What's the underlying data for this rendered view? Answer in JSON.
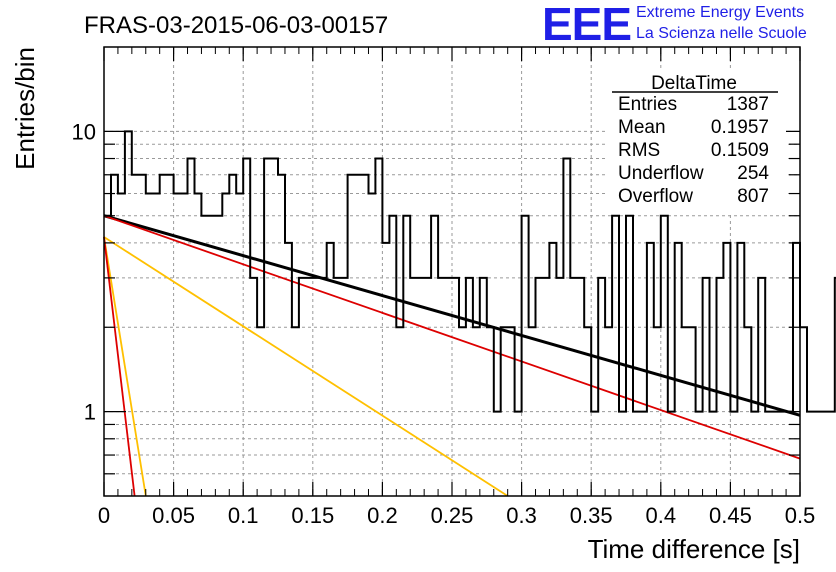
{
  "logo": {
    "mark": "EEE",
    "line1": "Extreme Energy Events",
    "line2": "La Scienza nelle Scuole",
    "color": "#1f1fe6"
  },
  "stats_box": {
    "name": "DeltaTime",
    "rows": [
      {
        "label": "Entries",
        "value": "1387"
      },
      {
        "label": "Mean",
        "value": "0.1957"
      },
      {
        "label": "RMS",
        "value": "0.1509"
      },
      {
        "label": "Underflow",
        "value": "254"
      },
      {
        "label": "Overflow",
        "value": "807"
      }
    ]
  },
  "chart_data": {
    "type": "line",
    "title": "FRAS-03-2015-06-03-00157",
    "xlabel": "Time difference [s]",
    "ylabel": "Entries/bin",
    "xlim": [
      0,
      0.5
    ],
    "ylim": [
      0.5,
      20
    ],
    "yscale": "log",
    "grid": true,
    "xticks": [
      0,
      0.05,
      0.1,
      0.15,
      0.2,
      0.25,
      0.3,
      0.35,
      0.4,
      0.45,
      0.5
    ],
    "xtick_labels": [
      "0",
      "0.05",
      "0.1",
      "0.15",
      "0.2",
      "0.25",
      "0.3",
      "0.35",
      "0.4",
      "0.45",
      "0.5"
    ],
    "yticks": [
      1,
      10
    ],
    "ytick_labels": [
      "1",
      "10"
    ],
    "histogram": {
      "bin_width": 0.005,
      "color": "#000000",
      "values": [
        5,
        7,
        6,
        10,
        7,
        7,
        6,
        6,
        7,
        7,
        6,
        6,
        8,
        6,
        5,
        5,
        5,
        6,
        7,
        6,
        8,
        3,
        2,
        8,
        8,
        7,
        4,
        2,
        3,
        3,
        3,
        3,
        4,
        3,
        3,
        7,
        7,
        7,
        6,
        8,
        4,
        5,
        2,
        5,
        3,
        3,
        3,
        5,
        3,
        3,
        3,
        2,
        3,
        2,
        3,
        2,
        1,
        2,
        2,
        1,
        5,
        2,
        3,
        3,
        4,
        3,
        8,
        3,
        3,
        2,
        1,
        3,
        2,
        5,
        1,
        5,
        1,
        1,
        4,
        2,
        5,
        1,
        4,
        2,
        2,
        1,
        3,
        1,
        3,
        4,
        1,
        4,
        2,
        1,
        3,
        1,
        1,
        1,
        1,
        4,
        2,
        1,
        1,
        1,
        1,
        3,
        3,
        1,
        2,
        1,
        3,
        2,
        1,
        4,
        2,
        1,
        2,
        1,
        2,
        3,
        3,
        1,
        3,
        3,
        1,
        3,
        2,
        2,
        1,
        2,
        2,
        2,
        3,
        2,
        1,
        1,
        2,
        3,
        2,
        1,
        3,
        4,
        2,
        1,
        2,
        2,
        2,
        2,
        4,
        2,
        4,
        2,
        3,
        1,
        2,
        2,
        2,
        3,
        2,
        2,
        3,
        2,
        2,
        3,
        5,
        2,
        1,
        1,
        2,
        2,
        4,
        4,
        2,
        2,
        4,
        2,
        3,
        2,
        3,
        2,
        2,
        3,
        3,
        3,
        5,
        2,
        2,
        3,
        2,
        3,
        2,
        2,
        1,
        2,
        4,
        3,
        4,
        4,
        1,
        3,
        3,
        4,
        3,
        2,
        3,
        3,
        4,
        2,
        2,
        2,
        2,
        1,
        3,
        2,
        2,
        2,
        1,
        2,
        2,
        2,
        2,
        2,
        2,
        3,
        2,
        2,
        4,
        2,
        3,
        2,
        2,
        1,
        2,
        3,
        2,
        1,
        3,
        2,
        2,
        3,
        3,
        2,
        2,
        2,
        3,
        2,
        1,
        2,
        2,
        1,
        2,
        2,
        2,
        1,
        1,
        2,
        2,
        2,
        1,
        1,
        1,
        1,
        2,
        1,
        2,
        2,
        2,
        1,
        1,
        1,
        1,
        2,
        2,
        2,
        1,
        2,
        2,
        2,
        1,
        2,
        2,
        2,
        1,
        1,
        2,
        2,
        2,
        1,
        2,
        2,
        1,
        2,
        2,
        2,
        1,
        1,
        1,
        2,
        2,
        2,
        1,
        2,
        2,
        1,
        1,
        1,
        1,
        1,
        2,
        2,
        1,
        2,
        2,
        1,
        1,
        1,
        1,
        2,
        2,
        2,
        2,
        2,
        1,
        1,
        1,
        1,
        1,
        1,
        1,
        2,
        2,
        2,
        1,
        1,
        2,
        2,
        1,
        2,
        2,
        1,
        1,
        1,
        3,
        1,
        1,
        2,
        2,
        1,
        1,
        2,
        1,
        1,
        1,
        1,
        2,
        1,
        1,
        2,
        3,
        1,
        1,
        1,
        2,
        2,
        1,
        1,
        1,
        1,
        2,
        3,
        1,
        2,
        1,
        2,
        2,
        1,
        1,
        1,
        2,
        1,
        2,
        1,
        2,
        1,
        1,
        1,
        2,
        1,
        1,
        1,
        2,
        1,
        1,
        2,
        1,
        3,
        1,
        1,
        1,
        2,
        1,
        3
      ]
    },
    "series": [
      {
        "color": "#000000",
        "x": [
          0,
          0.5
        ],
        "y": [
          5.0,
          0.97
        ]
      },
      {
        "color": "#dd0000",
        "x": [
          0,
          0.5
        ],
        "y": [
          5.0,
          0.68
        ]
      },
      {
        "color": "#ffc000",
        "x": [
          0,
          0.29
        ],
        "y": [
          4.2,
          0.5
        ]
      },
      {
        "color": "#ffc000",
        "x": [
          0,
          0.03
        ],
        "y": [
          4.2,
          0.5
        ]
      },
      {
        "color": "#dd0000",
        "x": [
          0,
          0.022
        ],
        "y": [
          4.2,
          0.5
        ]
      }
    ]
  }
}
